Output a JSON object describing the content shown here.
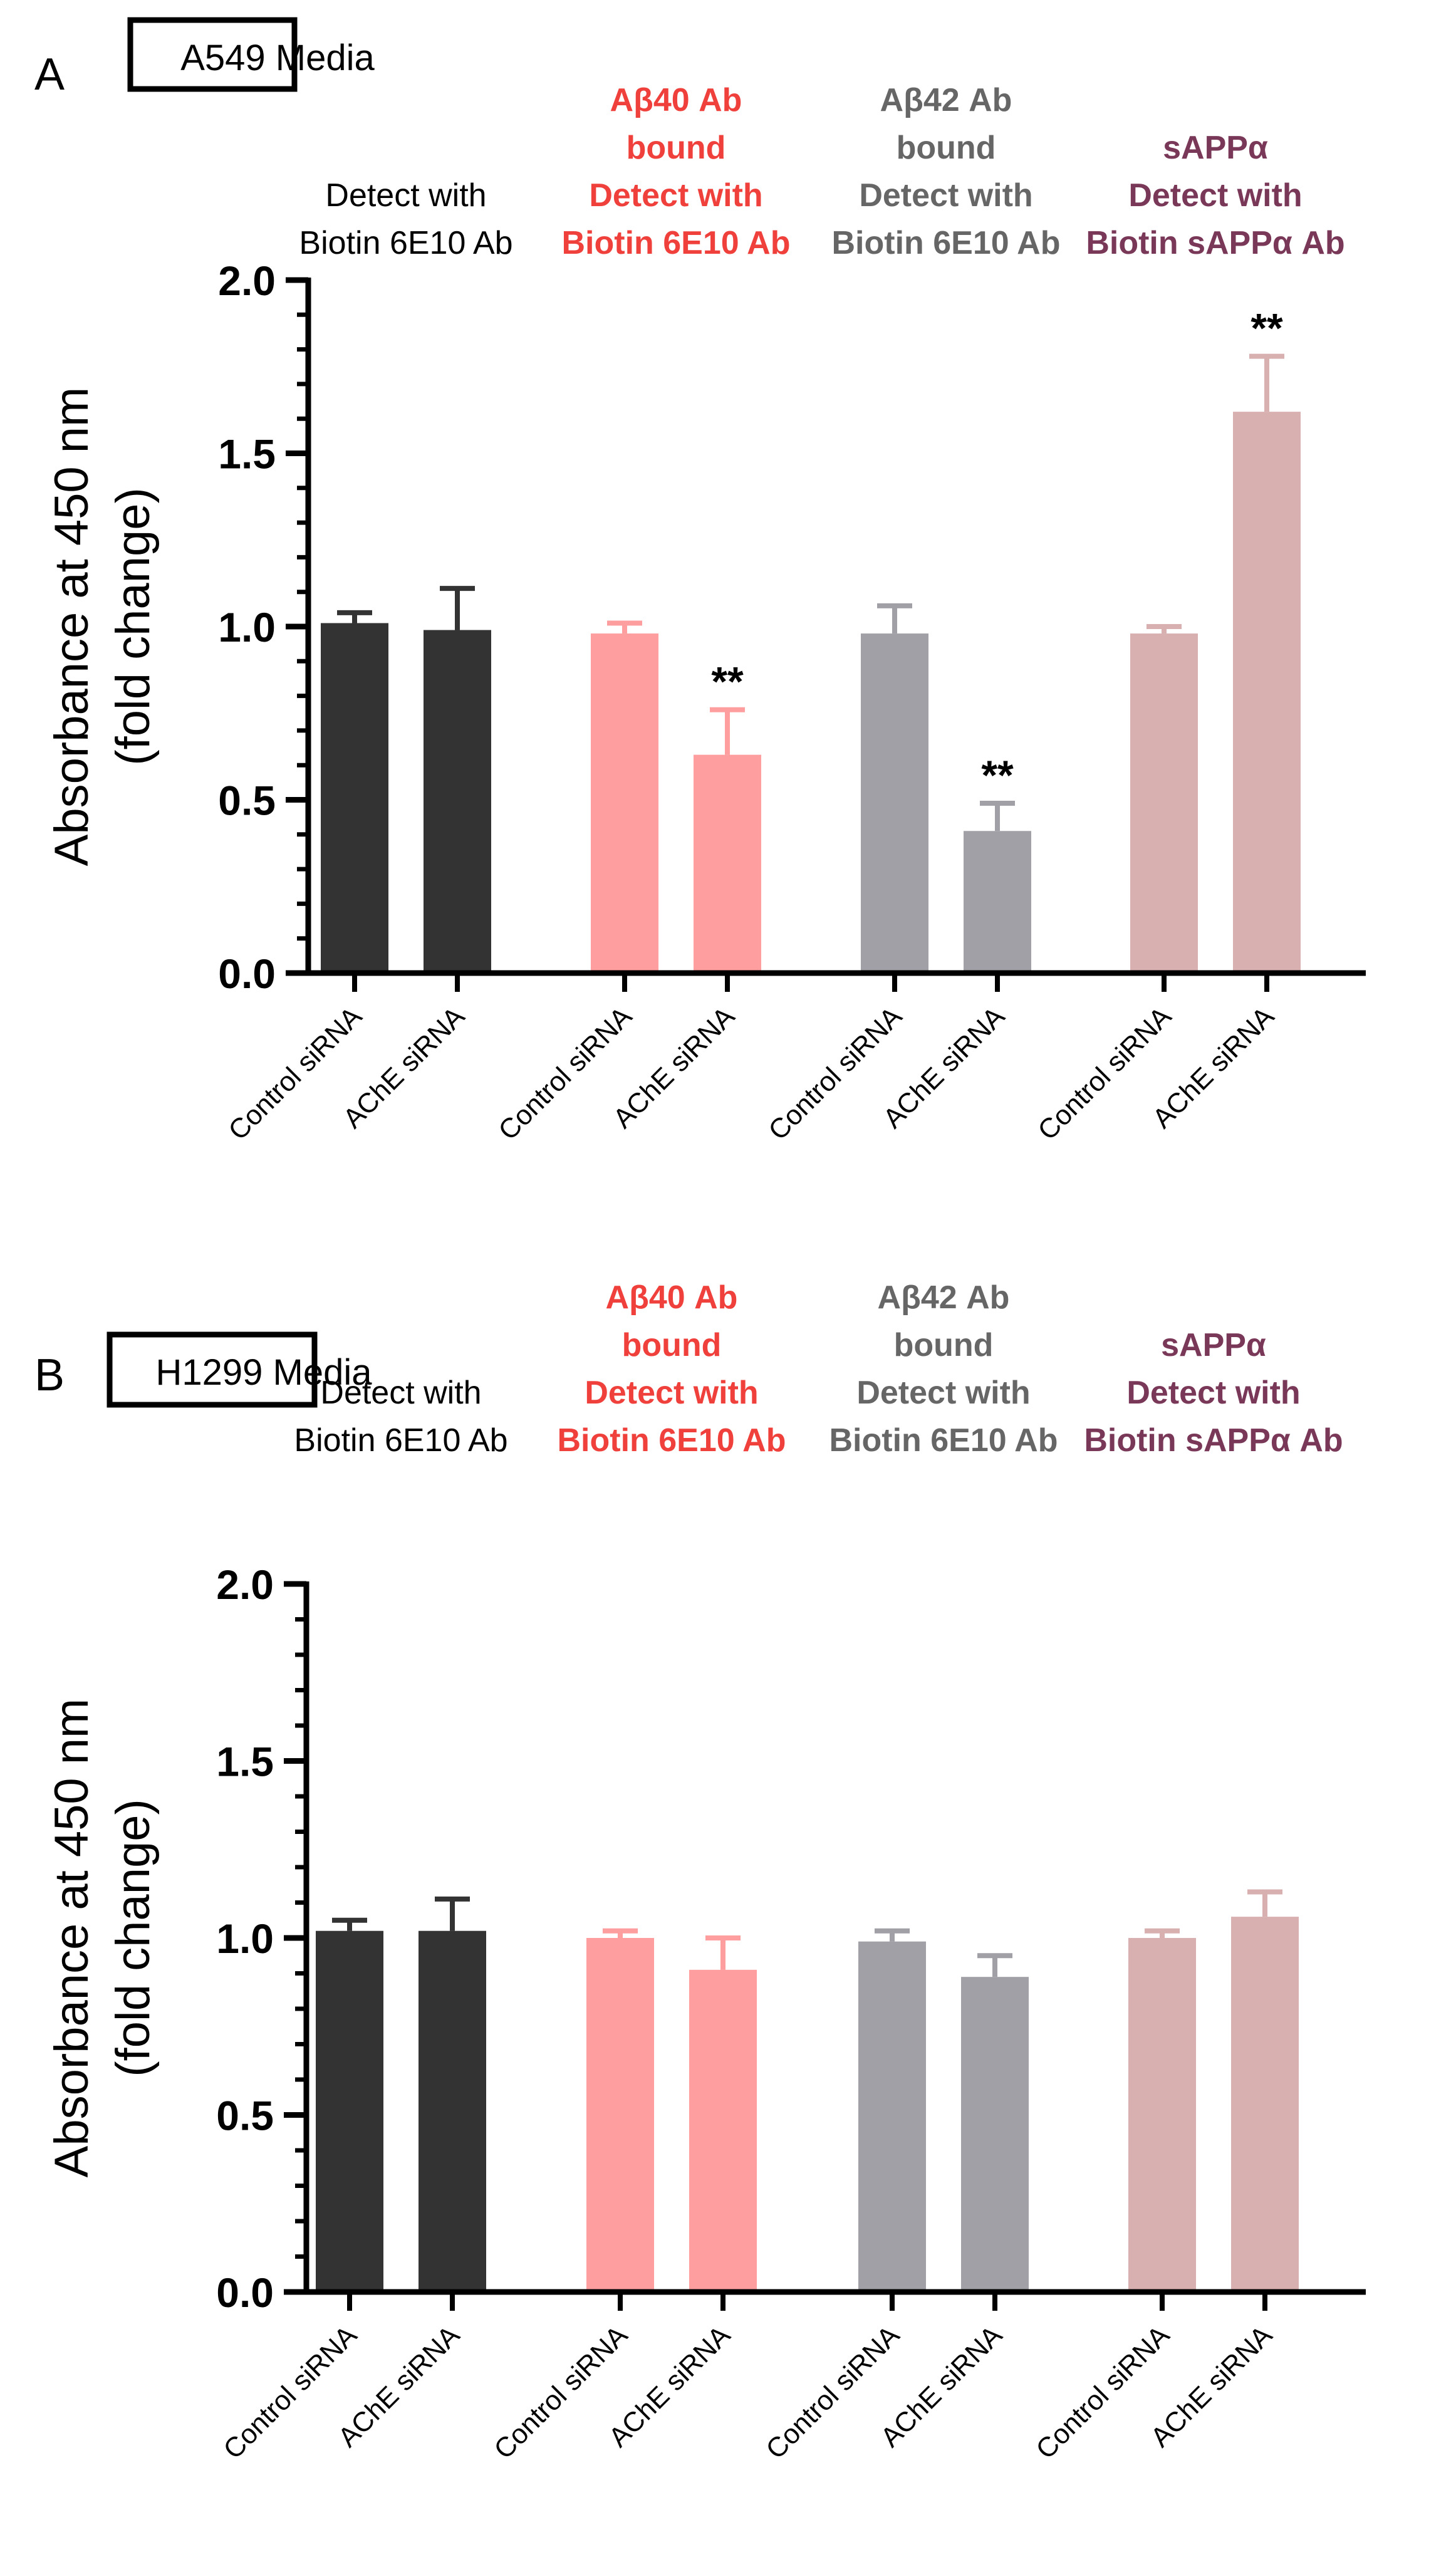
{
  "figure": {
    "type": "bar chart panels",
    "panels": 2
  },
  "chart_data": [
    {
      "panel_letter": "A",
      "title": "A549 Media",
      "type": "bar",
      "ylabel_line1": "Absorbance at 450 nm",
      "ylabel_line2": "(fold change)",
      "ylim": [
        0,
        2.0
      ],
      "y_ticks": [
        "0.0",
        "0.5",
        "1.0",
        "1.5",
        "2.0"
      ],
      "groups": [
        {
          "header_lines": [
            "Detect with",
            "Biotin 6E10 Ab"
          ],
          "color": "#333333",
          "header_color": "#000000",
          "header_bold": false,
          "categories": [
            "Control siRNA",
            "AChE siRNA"
          ],
          "values": [
            1.01,
            0.99
          ],
          "errors": [
            0.03,
            0.12
          ],
          "significance": [
            "",
            ""
          ]
        },
        {
          "header_lines": [
            "Aβ40 Ab",
            "bound",
            "Detect with",
            "Biotin 6E10 Ab"
          ],
          "color": "#ff9e9e",
          "header_color": "#f0403c",
          "header_bold": true,
          "categories": [
            "Control siRNA",
            "AChE siRNA"
          ],
          "values": [
            0.98,
            0.63
          ],
          "errors": [
            0.03,
            0.13
          ],
          "significance": [
            "",
            "**"
          ]
        },
        {
          "header_lines": [
            "Aβ42 Ab",
            "bound",
            "Detect with",
            "Biotin 6E10 Ab"
          ],
          "color": "#a0a0a6",
          "header_color": "#666666",
          "header_bold": true,
          "categories": [
            "Control siRNA",
            "AChE siRNA"
          ],
          "values": [
            0.98,
            0.41
          ],
          "errors": [
            0.08,
            0.08
          ],
          "significance": [
            "",
            "**"
          ]
        },
        {
          "header_lines": [
            "sAPPα",
            "Detect with",
            "Biotin sAPPα Ab"
          ],
          "color": "#d8b0b0",
          "header_color": "#7a3858",
          "header_bold": true,
          "categories": [
            "Control siRNA",
            "AChE siRNA"
          ],
          "values": [
            0.98,
            1.62
          ],
          "errors": [
            0.02,
            0.16
          ],
          "significance": [
            "",
            "**"
          ]
        }
      ]
    },
    {
      "panel_letter": "B",
      "title": "H1299 Media",
      "type": "bar",
      "ylabel_line1": "Absorbance at 450 nm",
      "ylabel_line2": "(fold change)",
      "ylim": [
        0,
        2.0
      ],
      "y_ticks": [
        "0.0",
        "0.5",
        "1.0",
        "1.5",
        "2.0"
      ],
      "groups": [
        {
          "header_lines": [
            "Detect with",
            "Biotin 6E10 Ab"
          ],
          "color": "#333333",
          "header_color": "#000000",
          "header_bold": false,
          "categories": [
            "Control siRNA",
            "AChE siRNA"
          ],
          "values": [
            1.02,
            1.02
          ],
          "errors": [
            0.03,
            0.09
          ],
          "significance": [
            "",
            ""
          ]
        },
        {
          "header_lines": [
            "Aβ40 Ab",
            "bound",
            "Detect with",
            "Biotin 6E10 Ab"
          ],
          "color": "#ff9e9e",
          "header_color": "#f0403c",
          "header_bold": true,
          "categories": [
            "Control siRNA",
            "AChE siRNA"
          ],
          "values": [
            1.0,
            0.91
          ],
          "errors": [
            0.02,
            0.09
          ],
          "significance": [
            "",
            ""
          ]
        },
        {
          "header_lines": [
            "Aβ42 Ab",
            "bound",
            "Detect with",
            "Biotin 6E10 Ab"
          ],
          "color": "#a0a0a6",
          "header_color": "#666666",
          "header_bold": true,
          "categories": [
            "Control siRNA",
            "AChE siRNA"
          ],
          "values": [
            0.99,
            0.89
          ],
          "errors": [
            0.03,
            0.06
          ],
          "significance": [
            "",
            ""
          ]
        },
        {
          "header_lines": [
            "sAPPα",
            "Detect with",
            "Biotin sAPPα Ab"
          ],
          "color": "#d8b0b0",
          "header_color": "#7a3858",
          "header_bold": true,
          "categories": [
            "Control siRNA",
            "AChE siRNA"
          ],
          "values": [
            1.0,
            1.06
          ],
          "errors": [
            0.02,
            0.07
          ],
          "significance": [
            "",
            ""
          ]
        }
      ]
    }
  ]
}
